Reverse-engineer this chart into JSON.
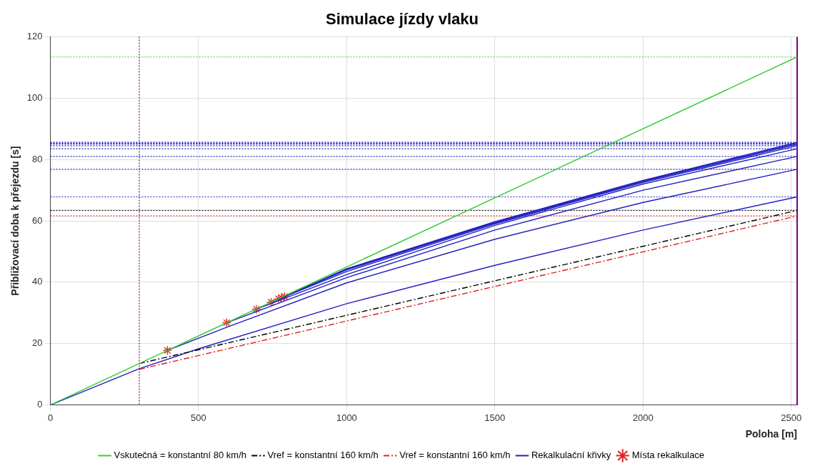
{
  "chart_data": {
    "type": "line",
    "title": "Simulace jízdy vlaku",
    "xlabel": "Poloha [m]",
    "ylabel": "Přibližovací doba k přejezdu [s]",
    "xlim": [
      0,
      2520
    ],
    "xticks": [
      0,
      500,
      1000,
      1500,
      2000,
      2500
    ],
    "ylim": [
      0,
      120
    ],
    "yticks": [
      0,
      20,
      40,
      60,
      80,
      100,
      120
    ],
    "grid": true,
    "legend": "bottom",
    "marker": "none",
    "series": [
      {
        "name": "Vskutečná = konstantní 80 km/h",
        "color": "#33cc33",
        "x": [
          0,
          2520
        ],
        "values": [
          0,
          113.4
        ]
      },
      {
        "name": "Vref = konstantní 160 km/h",
        "color": "#000000",
        "line_style": "dashdot",
        "x": [
          300,
          2520
        ],
        "values": [
          13.5,
          63.4
        ]
      },
      {
        "name": "Vref = konstantní 160 km/h",
        "color": "#e02020",
        "line_style": "dashdot",
        "x": [
          300,
          2520
        ],
        "values": [
          11.6,
          61.6
        ]
      },
      {
        "name": "Rekalkulační křivky",
        "color": "#2020c0",
        "x": [
          0,
          300,
          500,
          1000,
          1500,
          2000,
          2520
        ],
        "values": [
          0,
          11.8,
          18.3,
          33,
          45.5,
          57,
          67.8
        ]
      },
      {
        "color": "#2020c0",
        "x": [
          395,
          600,
          1000,
          1500,
          2000,
          2520
        ],
        "values": [
          17.8,
          25.5,
          39.8,
          54,
          66,
          76.8
        ]
      },
      {
        "color": "#2020c0",
        "x": [
          595,
          1000,
          1500,
          2000,
          2520
        ],
        "values": [
          26.8,
          41.5,
          57,
          70,
          81
        ]
      },
      {
        "color": "#2020c0",
        "x": [
          695,
          1000,
          1500,
          2000,
          2520
        ],
        "values": [
          31.2,
          42.5,
          58.5,
          72,
          83.5
        ]
      },
      {
        "color": "#2020c0",
        "x": [
          745,
          1000,
          1500,
          2000,
          2520
        ],
        "values": [
          33.5,
          43.5,
          59,
          72.5,
          84.5
        ]
      },
      {
        "color": "#2020c0",
        "x": [
          770,
          1000,
          1500,
          2000,
          2520
        ],
        "values": [
          34.6,
          44,
          59.3,
          72.8,
          85
        ]
      },
      {
        "color": "#2020c0",
        "x": [
          780,
          1000,
          1500,
          2000,
          2520
        ],
        "values": [
          35,
          44.2,
          59.5,
          73,
          85.3
        ]
      },
      {
        "color": "#2020c0",
        "x": [
          790,
          1000,
          1500,
          2000,
          2520
        ],
        "values": [
          35.3,
          44.4,
          59.7,
          73.2,
          85.6
        ]
      },
      {
        "name": "Místa rekalkulace",
        "type": "scatter",
        "marker": "cross",
        "color": "#e02020",
        "x": [
          395,
          595,
          695,
          745,
          770,
          780,
          790
        ],
        "values": [
          17.8,
          26.8,
          31.2,
          33.5,
          34.6,
          35,
          35.3
        ]
      }
    ],
    "ref_lines": [
      {
        "axis": "x",
        "value": 300,
        "color": "#800080",
        "line_style": "dotted"
      },
      {
        "axis": "x",
        "value": 2520,
        "color": "#800080",
        "line_style": "solid"
      },
      {
        "axis": "y",
        "value": 113.4,
        "color": "#33cc33",
        "line_style": "dotted"
      },
      {
        "axis": "y",
        "value": 85.6,
        "color": "#2020c0",
        "line_style": "dotted"
      },
      {
        "axis": "y",
        "value": 85.3,
        "color": "#2020c0",
        "line_style": "dotted"
      },
      {
        "axis": "y",
        "value": 85,
        "color": "#2020c0",
        "line_style": "dotted"
      },
      {
        "axis": "y",
        "value": 84.5,
        "color": "#2020c0",
        "line_style": "dotted"
      },
      {
        "axis": "y",
        "value": 83.5,
        "color": "#2020c0",
        "line_style": "dotted"
      },
      {
        "axis": "y",
        "value": 81,
        "color": "#2020c0",
        "line_style": "dotted"
      },
      {
        "axis": "y",
        "value": 76.8,
        "color": "#2020c0",
        "line_style": "dotted"
      },
      {
        "axis": "y",
        "value": 67.8,
        "color": "#2020c0",
        "line_style": "dotted"
      },
      {
        "axis": "y",
        "value": 63.4,
        "color": "#000000",
        "line_style": "dotted"
      },
      {
        "axis": "y",
        "value": 61.6,
        "color": "#e02020",
        "line_style": "dotted"
      }
    ]
  }
}
